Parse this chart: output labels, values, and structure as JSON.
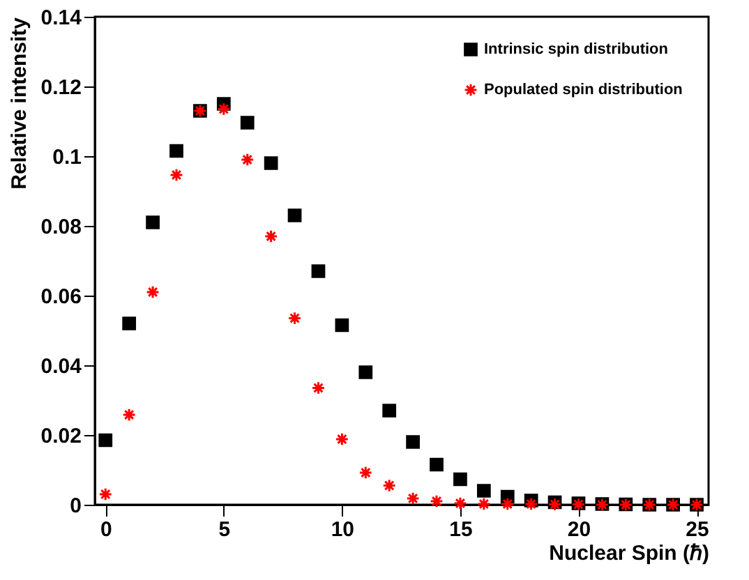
{
  "chart_data": {
    "type": "scatter",
    "xlabel": "Nuclear Spin (ℏ)",
    "ylabel": "Relative intensity",
    "x": [
      0,
      1,
      2,
      3,
      4,
      5,
      6,
      7,
      8,
      9,
      10,
      11,
      12,
      13,
      14,
      15,
      16,
      17,
      18,
      19,
      20,
      21,
      22,
      23,
      24,
      25
    ],
    "series": [
      {
        "name": "Intrinsic spin distribution",
        "color": "#000000",
        "marker": "square",
        "values": [
          0.0185,
          0.052,
          0.081,
          0.1015,
          0.113,
          0.115,
          0.1096,
          0.098,
          0.083,
          0.067,
          0.0515,
          0.038,
          0.027,
          0.018,
          0.0115,
          0.0073,
          0.004,
          0.0023,
          0.0012,
          0.0007,
          0.0004,
          0.0002,
          0.0001,
          0,
          0,
          0
        ]
      },
      {
        "name": "Populated spin distribution",
        "color": "#ff0000",
        "marker": "cross",
        "values": [
          0.003,
          0.0258,
          0.061,
          0.0946,
          0.113,
          0.1135,
          0.099,
          0.077,
          0.0535,
          0.0335,
          0.0188,
          0.0092,
          0.0055,
          0.0018,
          0.001,
          0.0004,
          0.0002,
          0.0002,
          0.0002,
          0.0001,
          0.0001,
          0,
          0,
          0,
          0,
          0
        ]
      }
    ],
    "xlim": [
      -0.45,
      25.5
    ],
    "ylim": [
      0,
      0.14
    ],
    "xticks": [
      0,
      5,
      10,
      15,
      20,
      25
    ],
    "yticks": [
      0,
      0.02,
      0.04,
      0.06,
      0.08,
      0.1,
      0.12,
      0.14
    ],
    "grid": false,
    "legend": "top right"
  }
}
